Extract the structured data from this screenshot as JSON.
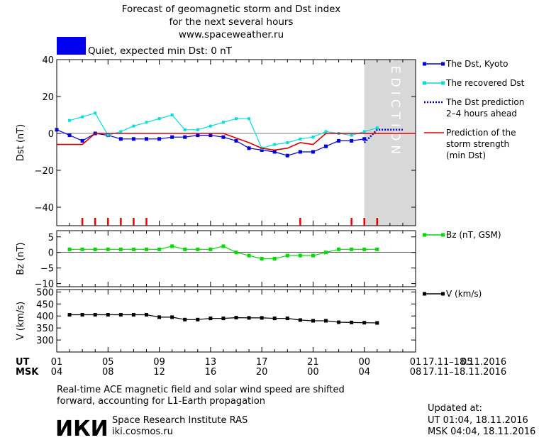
{
  "header": {
    "title_lines": [
      "Forecast of geomagnetic storm and Dst index",
      "for the next several hours",
      "www.spaceweather.ru"
    ],
    "status_text": "Quiet, expected min Dst: 0 nT",
    "status_color": "#0000ee"
  },
  "prediction_label": "PREDICTION",
  "time_axis": {
    "ut_label": "UT",
    "msk_label": "MSK",
    "ut_ticks": [
      "01",
      "05",
      "09",
      "13",
      "17",
      "21",
      "00",
      "01",
      "05"
    ],
    "msk_ticks": [
      "04",
      "08",
      "12",
      "16",
      "20",
      "00",
      "04",
      "08"
    ],
    "date_range": "17.11–18.11.2016"
  },
  "footer": {
    "note_lines": [
      "Real-time ACE magnetic field and solar wind speed are shifted",
      "forward, accounting for L1-Earth propagation"
    ],
    "logo_text": "ИКИ",
    "institute": "Space Research Institute RAS",
    "site": "iki.cosmos.ru",
    "updated_label": "Updated at:",
    "updated_ut": "UT   01:04, 18.11.2016",
    "updated_msk": "MSK 04:04, 18.11.2016"
  },
  "chart_data": [
    {
      "type": "line",
      "ylabel": "Dst (nT)",
      "ylim": [
        -50,
        40
      ],
      "yticks": [
        40,
        20,
        0,
        -20,
        -40
      ],
      "xlim": [
        0,
        28
      ],
      "prediction_start": 24,
      "series": [
        {
          "name": "The Dst, Kyoto",
          "color": "#0000dd",
          "marker": "square",
          "x": [
            0,
            1,
            2,
            3,
            4,
            5,
            6,
            7,
            8,
            9,
            10,
            11,
            12,
            13,
            14,
            15,
            16,
            17,
            18,
            19,
            20,
            21,
            22,
            23,
            24
          ],
          "y": [
            2,
            -1,
            -4,
            0,
            -1,
            -3,
            -3,
            -3,
            -3,
            -2,
            -2,
            -1,
            -1,
            -2,
            -4,
            -8,
            -9,
            -10,
            -12,
            -10,
            -10,
            -7,
            -4,
            -4,
            -3
          ]
        },
        {
          "name": "The recovered Dst",
          "color": "#00e0e0",
          "marker": "small-square",
          "x": [
            1,
            2,
            3,
            4,
            5,
            6,
            7,
            8,
            9,
            10,
            11,
            12,
            13,
            14,
            15,
            16,
            17,
            18,
            19,
            20,
            21,
            22,
            23,
            24,
            25
          ],
          "y": [
            7,
            9,
            11,
            -1,
            1,
            4,
            6,
            8,
            10,
            2,
            2,
            4,
            6,
            8,
            8,
            -8,
            -6,
            -5,
            -3,
            -2,
            1,
            0,
            -1,
            1,
            3
          ]
        },
        {
          "name": "The Dst prediction\n2–4 hours ahead",
          "color": "#0000cc",
          "style": "dotted",
          "x": [
            24,
            25,
            26,
            27
          ],
          "y": [
            -5,
            2,
            2,
            2
          ]
        },
        {
          "name": "Prediction of the\nstorm strength\n(min Dst)",
          "color": "#dd0000",
          "style": "line",
          "x": [
            0,
            2,
            3,
            13,
            15,
            16,
            17,
            18,
            19,
            20,
            21,
            28
          ],
          "y": [
            -6,
            -6,
            0,
            0,
            -5,
            -8,
            -9,
            -8,
            -5,
            -6,
            0,
            0
          ]
        }
      ],
      "event_markers_x": [
        2,
        3,
        4,
        5,
        6,
        7,
        19,
        23,
        24,
        25
      ]
    },
    {
      "type": "line",
      "ylabel": "Bz (nT)",
      "ylim": [
        -11,
        7
      ],
      "yticks": [
        5,
        0,
        -5,
        -10
      ],
      "xlim": [
        0,
        28
      ],
      "series": [
        {
          "name": "Bz (nT, GSM)",
          "color": "#00dd00",
          "marker": "square",
          "x": [
            1,
            2,
            3,
            4,
            5,
            6,
            7,
            8,
            9,
            10,
            11,
            12,
            13,
            14,
            15,
            16,
            17,
            18,
            19,
            20,
            21,
            22,
            23,
            24,
            25
          ],
          "y": [
            1,
            1,
            1,
            1,
            1,
            1,
            1,
            1,
            2,
            1,
            1,
            1,
            2,
            0,
            -1,
            -2,
            -2,
            -1,
            -1,
            -1,
            0,
            1,
            1,
            1,
            1
          ]
        }
      ]
    },
    {
      "type": "line",
      "ylabel": "V (km/s)",
      "ylim": [
        250,
        510
      ],
      "yticks": [
        500,
        450,
        400,
        350,
        300
      ],
      "xlim": [
        0,
        28
      ],
      "series": [
        {
          "name": "V (km/s)",
          "color": "#000000",
          "marker": "square",
          "x": [
            1,
            2,
            3,
            4,
            5,
            6,
            7,
            8,
            9,
            10,
            11,
            12,
            13,
            14,
            15,
            16,
            17,
            18,
            19,
            20,
            21,
            22,
            23,
            24,
            25
          ],
          "y": [
            405,
            405,
            405,
            405,
            405,
            405,
            405,
            395,
            395,
            385,
            385,
            390,
            390,
            393,
            392,
            392,
            390,
            390,
            383,
            380,
            380,
            374,
            373,
            372,
            371
          ]
        }
      ]
    }
  ]
}
